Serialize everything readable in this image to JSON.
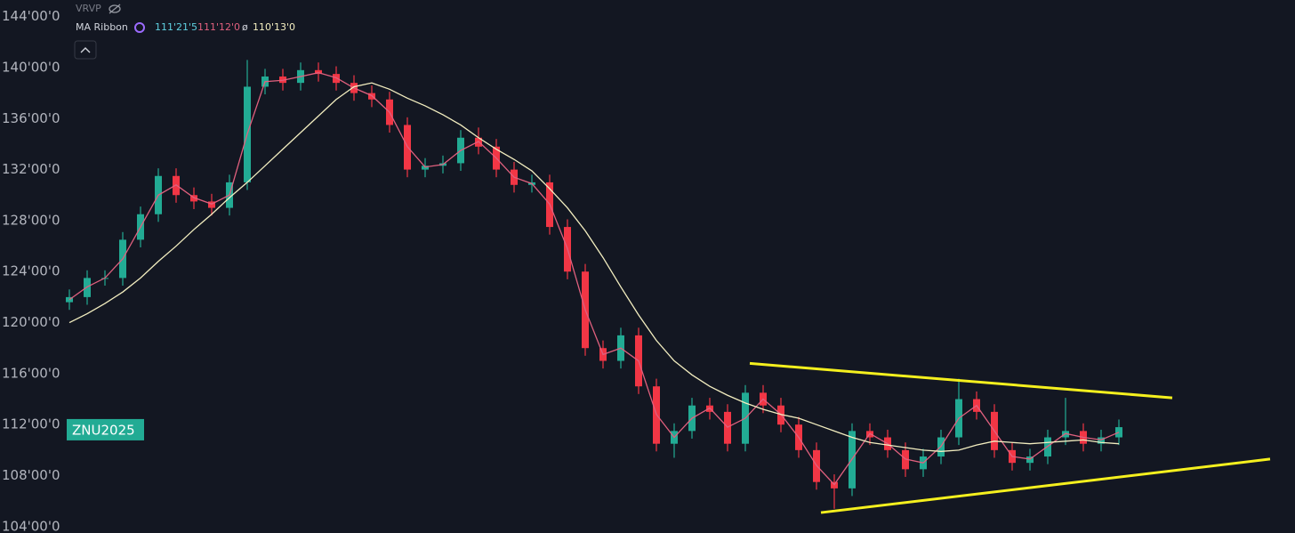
{
  "chart_data": {
    "type": "candlestick",
    "legend": {
      "indicator_1": "VRVP",
      "indicator_2": "MA Ribbon",
      "value_1": "111'21'5",
      "value_2": "111'12'0",
      "symbol_3": "ø",
      "value_3": "110'13'0"
    },
    "symbol_label": {
      "text": "ZNU2025",
      "value": 111.6,
      "color": "#22ab94"
    },
    "up_color": "#22ab94",
    "down_color": "#f23645",
    "ylim": [
      103.5,
      145.3
    ],
    "xlim": [
      -0.1,
      68.9
    ],
    "yticks": [
      {
        "value": 104,
        "label": "104'00'0"
      },
      {
        "value": 108,
        "label": "108'00'0"
      },
      {
        "value": 112,
        "label": "112'00'0"
      },
      {
        "value": 116,
        "label": "116'00'0"
      },
      {
        "value": 120,
        "label": "120'00'0"
      },
      {
        "value": 124,
        "label": "124'00'0"
      },
      {
        "value": 128,
        "label": "128'00'0"
      },
      {
        "value": 132,
        "label": "132'00'0"
      },
      {
        "value": 136,
        "label": "136'00'0"
      },
      {
        "value": 140,
        "label": "140'00'0"
      },
      {
        "value": 144,
        "label": "144'00'0"
      }
    ],
    "x": [
      0,
      1,
      2,
      3,
      4,
      5,
      6,
      7,
      8,
      9,
      10,
      11,
      12,
      13,
      14,
      15,
      16,
      17,
      18,
      19,
      20,
      21,
      22,
      23,
      24,
      25,
      26,
      27,
      28,
      29,
      30,
      31,
      32,
      33,
      34,
      35,
      36,
      37,
      38,
      39,
      40,
      41,
      42,
      43,
      44,
      45,
      46,
      47,
      48,
      49,
      50,
      51,
      52,
      53,
      54,
      55,
      56,
      57,
      58,
      59
    ],
    "open": [
      121.6,
      122,
      123.5,
      123.5,
      126.5,
      128.5,
      131.5,
      130,
      129.5,
      129,
      131,
      138.5,
      139.3,
      138.8,
      139.8,
      139.5,
      138.8,
      138,
      137.5,
      135.5,
      132,
      132.3,
      132.5,
      134.5,
      133.8,
      132,
      130.8,
      131,
      127.5,
      124,
      118,
      117,
      119,
      115,
      110.5,
      111.5,
      113.5,
      113,
      110.5,
      114.5,
      113.5,
      112,
      110,
      107.5,
      107,
      111.5,
      111,
      110,
      108.5,
      109.5,
      111,
      114,
      113,
      110,
      109,
      109.5,
      111,
      111.5,
      110.5,
      111
    ],
    "high": [
      122.6,
      124.1,
      124.1,
      127.1,
      129.1,
      132.1,
      132.1,
      130.6,
      130.1,
      131.6,
      140.6,
      139.9,
      139.9,
      140.4,
      140.4,
      140.1,
      139.4,
      138.6,
      138.1,
      136.1,
      132.9,
      133.1,
      135.1,
      135.3,
      134.4,
      132.6,
      131.6,
      131.6,
      128.1,
      124.6,
      118.6,
      119.6,
      119.6,
      115.6,
      112.1,
      114.1,
      114.1,
      113.6,
      115.1,
      115.1,
      114.1,
      112.6,
      110.6,
      108.1,
      112.1,
      112.1,
      111.6,
      110.6,
      110.1,
      111.6,
      115.6,
      114.6,
      113.6,
      110.6,
      110.1,
      111.6,
      114.1,
      112.1,
      111.6,
      112.4
    ],
    "low": [
      121,
      121.4,
      122.9,
      122.9,
      125.9,
      127.9,
      129.4,
      128.9,
      128.4,
      128.4,
      130.4,
      137.9,
      138.2,
      138.2,
      138.9,
      138.2,
      137.4,
      136.9,
      134.9,
      131.4,
      131.4,
      131.7,
      131.9,
      133.2,
      131.4,
      130.2,
      130.2,
      126.9,
      123.4,
      117.4,
      116.4,
      116.4,
      114.4,
      109.9,
      109.4,
      110.9,
      112.4,
      109.9,
      109.9,
      112.9,
      111.4,
      109.4,
      106.9,
      105.4,
      106.4,
      110.4,
      109.4,
      107.9,
      107.9,
      108.9,
      110.4,
      112.4,
      109.4,
      108.4,
      108.4,
      108.9,
      110.4,
      109.9,
      109.9,
      110.4
    ],
    "close": [
      122,
      123.5,
      123.5,
      126.5,
      128.5,
      131.5,
      130,
      129.5,
      129,
      131,
      138.5,
      139.3,
      138.8,
      139.8,
      139.5,
      138.8,
      138,
      137.5,
      135.5,
      132,
      132.3,
      132.5,
      134.5,
      133.8,
      132,
      130.8,
      131,
      127.5,
      124,
      118,
      117,
      119,
      115,
      110.5,
      111.5,
      113.5,
      113,
      110.5,
      114.5,
      113.5,
      112,
      110,
      107.5,
      107,
      111.5,
      111,
      110,
      108.5,
      109.5,
      111,
      114,
      113,
      110,
      109,
      109.5,
      111,
      111.5,
      110.5,
      111,
      111.8
    ],
    "series": [
      {
        "name": "MA fast",
        "color": "#e0607e",
        "values": [
          121.8,
          122.8,
          123.5,
          125,
          127.5,
          130,
          130.8,
          129.8,
          129.3,
          130,
          134.8,
          138.9,
          139,
          139.3,
          139.6,
          139.2,
          138.4,
          137.8,
          136.5,
          133.8,
          132.2,
          132.4,
          133.5,
          134.2,
          132.9,
          131.4,
          130.9,
          129.3,
          125.8,
          121,
          117.5,
          118,
          117,
          112.8,
          111,
          112.5,
          113.3,
          111.8,
          112.5,
          114,
          112.8,
          111,
          108.8,
          107.3,
          109.3,
          111.3,
          110.5,
          109.3,
          109,
          110.3,
          112.5,
          113.5,
          111.5,
          109.5,
          109.3,
          110.3,
          111.3,
          111,
          110.8,
          111.4
        ]
      },
      {
        "name": "MA slow",
        "color": "#f3eec0",
        "values": [
          120,
          120.7,
          121.5,
          122.4,
          123.5,
          124.8,
          126,
          127.3,
          128.5,
          129.8,
          131,
          132.3,
          133.6,
          134.9,
          136.2,
          137.5,
          138.5,
          138.8,
          138.3,
          137.6,
          137,
          136.3,
          135.5,
          134.5,
          133.6,
          132.8,
          131.9,
          130.5,
          129,
          127.2,
          125.1,
          122.8,
          120.6,
          118.6,
          117,
          115.9,
          115,
          114.3,
          113.7,
          113.2,
          112.8,
          112.5,
          112,
          111.5,
          111,
          110.6,
          110.4,
          110.2,
          110,
          109.9,
          110,
          110.4,
          110.7,
          110.6,
          110.5,
          110.6,
          110.7,
          110.8,
          110.6,
          110.5
        ]
      }
    ],
    "trendlines": [
      {
        "color": "#f5f01e",
        "x": [
          38.25,
          62
        ],
        "y": [
          116.8,
          114.1
        ]
      },
      {
        "color": "#f5f01e",
        "x": [
          42.25,
          67.5
        ],
        "y": [
          105.1,
          109.3
        ]
      }
    ]
  }
}
